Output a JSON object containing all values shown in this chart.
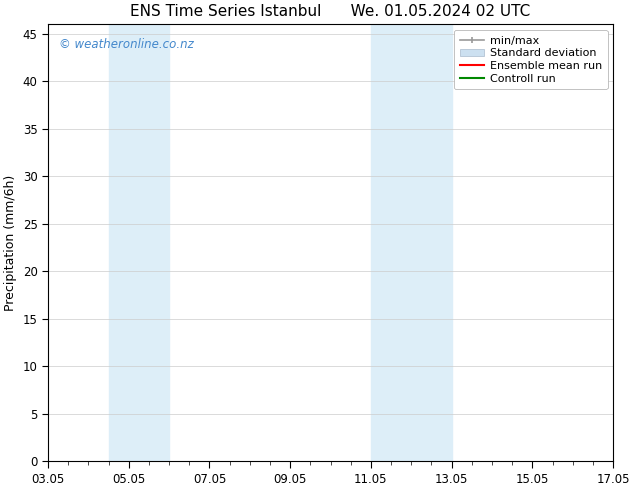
{
  "title": "ENS Time Series Istanbul      We. 01.05.2024 02 UTC",
  "ylabel": "Precipitation (mm/6h)",
  "xlabel": "",
  "ylim": [
    0,
    46
  ],
  "yticks": [
    0,
    5,
    10,
    15,
    20,
    25,
    30,
    35,
    40,
    45
  ],
  "x_start_day": 3,
  "x_end_day": 17,
  "xtick_days": [
    3,
    5,
    7,
    9,
    11,
    13,
    15,
    17
  ],
  "xtick_labels": [
    "03.05",
    "05.05",
    "07.05",
    "09.05",
    "11.05",
    "13.05",
    "15.05",
    "17.05"
  ],
  "shaded_bands": [
    {
      "x_start": 4.5,
      "x_end": 6.0,
      "color": "#ddeef8"
    },
    {
      "x_start": 11.0,
      "x_end": 13.0,
      "color": "#ddeef8"
    }
  ],
  "watermark_text": "© weatheronline.co.nz",
  "watermark_color": "#4488cc",
  "bg_color": "#ffffff",
  "grid_color": "#cccccc",
  "title_fontsize": 11,
  "label_fontsize": 9,
  "tick_fontsize": 8.5,
  "legend_fontsize": 8,
  "minmax_color": "#999999",
  "std_facecolor": "#cce0f0",
  "std_edgecolor": "#aabbcc",
  "ensemble_color": "#ff0000",
  "control_color": "#008800"
}
